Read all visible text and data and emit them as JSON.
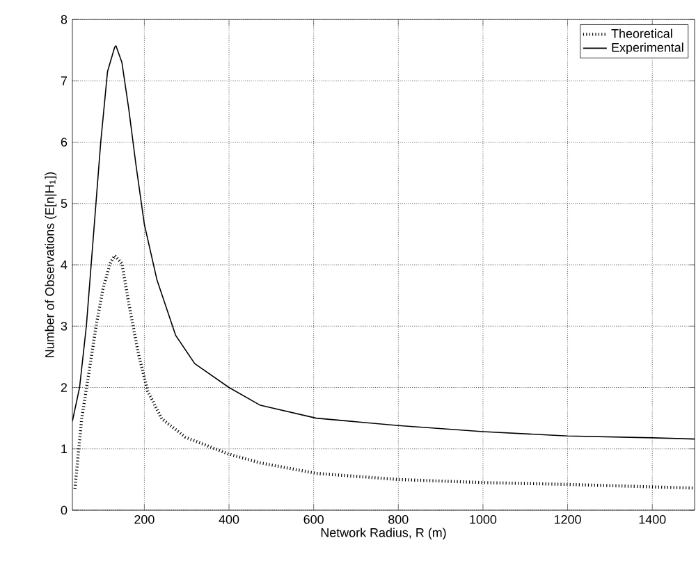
{
  "chart_data": {
    "type": "line",
    "xlabel": "Network Radius, R (m)",
    "ylabel": "Number of Observations (E[n|H$_{1}$])",
    "xlim": [
      30,
      1500
    ],
    "ylim": [
      0,
      8
    ],
    "xticks": [
      200,
      400,
      600,
      800,
      1000,
      1200,
      1400
    ],
    "yticks": [
      0,
      1,
      2,
      3,
      4,
      5,
      6,
      7,
      8
    ],
    "grid": true,
    "legend": "top right",
    "marker": "none",
    "series": [
      {
        "name": "Theoretical",
        "color": "#000000",
        "line_style": "dotted",
        "x": [
          36,
          52,
          69,
          86,
          102,
          119,
          130,
          147,
          163,
          186,
          208,
          241,
          297,
          397,
          474,
          606,
          800,
          1000,
          1200,
          1400,
          1500
        ],
        "values": [
          0.35,
          1.49,
          2.24,
          3.0,
          3.6,
          4.02,
          4.15,
          4.02,
          3.38,
          2.55,
          1.94,
          1.49,
          1.19,
          0.92,
          0.77,
          0.6,
          0.5,
          0.45,
          0.42,
          0.38,
          0.36
        ]
      },
      {
        "name": "Experimental",
        "color": "#000000",
        "line_style": "solid",
        "x": [
          30,
          47,
          63,
          80,
          97,
          113,
          130,
          133,
          147,
          163,
          180,
          200,
          230,
          274,
          319,
          400,
          474,
          606,
          800,
          1000,
          1200,
          1400,
          1500
        ],
        "values": [
          1.45,
          2.0,
          3.0,
          4.5,
          6.0,
          7.15,
          7.55,
          7.57,
          7.3,
          6.55,
          5.64,
          4.66,
          3.75,
          2.85,
          2.39,
          2.0,
          1.71,
          1.5,
          1.38,
          1.28,
          1.21,
          1.18,
          1.16
        ]
      }
    ]
  }
}
